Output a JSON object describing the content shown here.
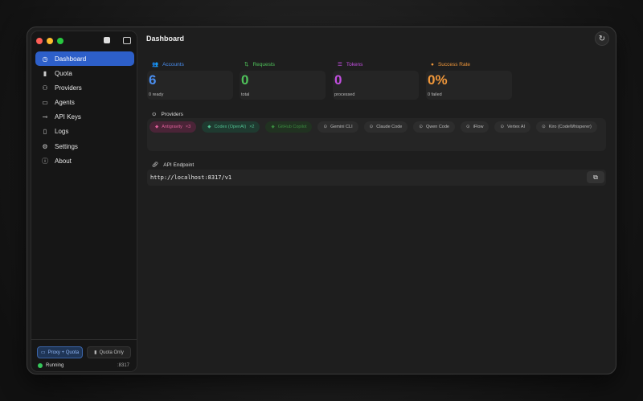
{
  "sidebar": {
    "items": [
      {
        "label": "Dashboard",
        "icon": "gauge-icon",
        "glyph": "◷"
      },
      {
        "label": "Quota",
        "icon": "bar-chart-icon",
        "glyph": "▮"
      },
      {
        "label": "Providers",
        "icon": "people-icon",
        "glyph": "⚇"
      },
      {
        "label": "Agents",
        "icon": "terminal-icon",
        "glyph": "▭"
      },
      {
        "label": "API Keys",
        "icon": "key-icon",
        "glyph": "⊸"
      },
      {
        "label": "Logs",
        "icon": "document-icon",
        "glyph": "▯"
      },
      {
        "label": "Settings",
        "icon": "gear-icon",
        "glyph": "⚙"
      },
      {
        "label": "About",
        "icon": "info-icon",
        "glyph": "ⓘ"
      }
    ],
    "modes": {
      "proxy": "Proxy + Quota",
      "quota": "Quota Only"
    },
    "status": "Running",
    "port": ":8317"
  },
  "header": {
    "title": "Dashboard"
  },
  "stats": [
    {
      "label": "Accounts",
      "value": "6",
      "sub": "0 ready",
      "color": "#4a8ef0",
      "glyph": "👥"
    },
    {
      "label": "Requests",
      "value": "0",
      "sub": "total",
      "color": "#4fc15a",
      "glyph": "⇅"
    },
    {
      "label": "Tokens",
      "value": "0",
      "sub": "processed",
      "color": "#c24fe0",
      "glyph": "☰"
    },
    {
      "label": "Success Rate",
      "value": "0%",
      "sub": "0 failed",
      "color": "#f0973a",
      "glyph": "●"
    }
  ],
  "providers": {
    "label": "Providers",
    "items": [
      {
        "label": "Antigravity",
        "count": "×3",
        "fg": "#e0609a",
        "bg": "#4a2437"
      },
      {
        "label": "Codex (OpenAI)",
        "count": "×2",
        "fg": "#4fbf90",
        "bg": "#1f3a30"
      },
      {
        "label": "GitHub Copilot",
        "count": "",
        "fg": "#3a8a3f",
        "bg": "#213221"
      },
      {
        "label": "Gemini CLI",
        "count": ""
      },
      {
        "label": "Claude Code",
        "count": ""
      },
      {
        "label": "Qwen Code",
        "count": ""
      },
      {
        "label": "iFlow",
        "count": ""
      },
      {
        "label": "Vertex AI",
        "count": ""
      },
      {
        "label": "Kiro (CodeWhisperer)",
        "count": ""
      }
    ]
  },
  "api": {
    "label": "API Endpoint",
    "url": "http://localhost:8317/v1"
  }
}
